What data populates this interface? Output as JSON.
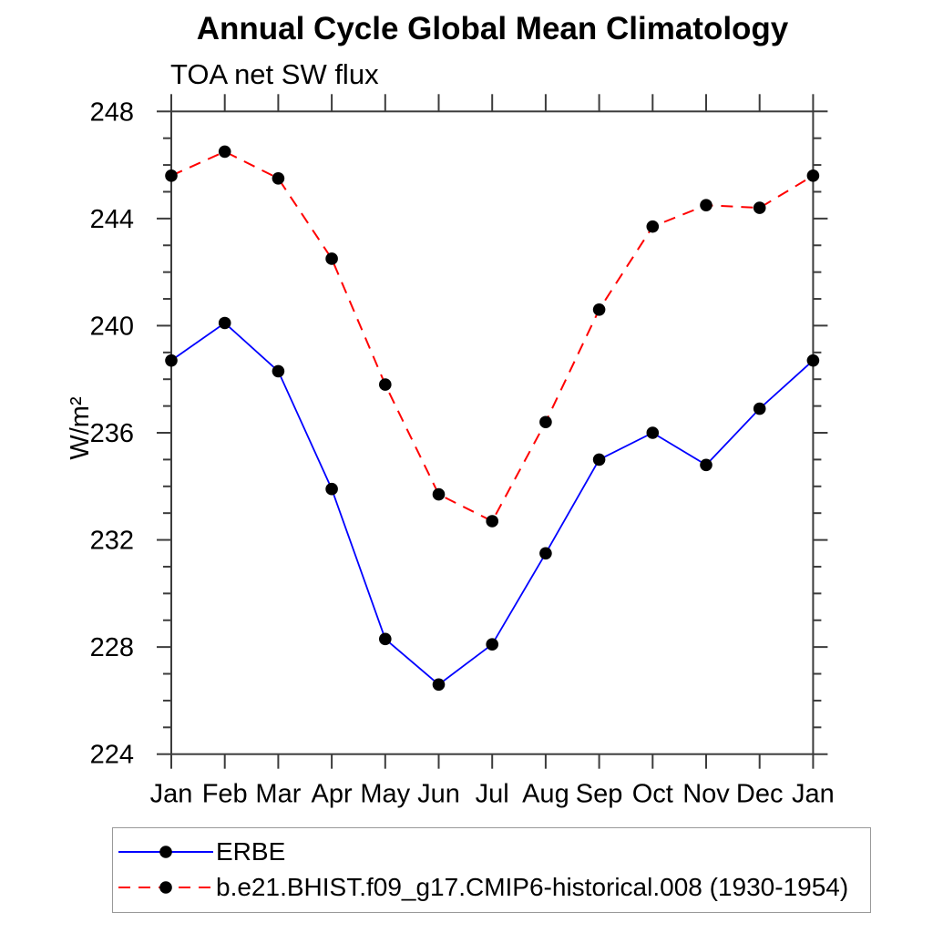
{
  "chart_data": {
    "type": "line",
    "title": "Annual Cycle Global Mean Climatology",
    "subtitle": "TOA net SW flux",
    "ylabel": "W/m²",
    "xlabel": "",
    "categories": [
      "Jan",
      "Feb",
      "Mar",
      "Apr",
      "May",
      "Jun",
      "Jul",
      "Aug",
      "Sep",
      "Oct",
      "Nov",
      "Dec",
      "Jan"
    ],
    "ylim": [
      224,
      248
    ],
    "yticks": [
      224,
      228,
      232,
      236,
      240,
      244,
      248
    ],
    "yminor_step": 1,
    "grid": false,
    "legend_position": "bottom-left-box",
    "series": [
      {
        "name": "ERBE",
        "color": "#0000ff",
        "line_style": "solid",
        "marker": "filled-circle",
        "marker_color": "#000000",
        "values": [
          238.7,
          240.1,
          238.3,
          233.9,
          228.3,
          226.6,
          228.1,
          231.5,
          235.0,
          236.0,
          234.8,
          236.9,
          238.7
        ]
      },
      {
        "name": "b.e21.BHIST.f09_g17.CMIP6-historical.008 (1930-1954)",
        "color": "#ff0000",
        "line_style": "dashed",
        "marker": "filled-circle",
        "marker_color": "#000000",
        "values": [
          245.6,
          246.5,
          245.5,
          242.5,
          237.8,
          233.7,
          232.7,
          236.4,
          240.6,
          243.7,
          244.5,
          244.4,
          245.6
        ]
      }
    ]
  },
  "colors": {
    "background": "#ffffff",
    "axis": "#3c3c3c",
    "text": "#000000",
    "legend_border": "#999999"
  }
}
